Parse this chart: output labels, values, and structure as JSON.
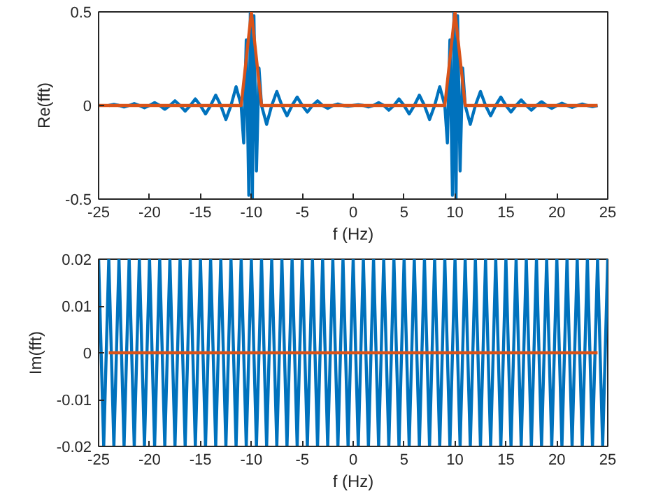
{
  "chart_data": [
    {
      "type": "line",
      "xlabel": "f (Hz)",
      "ylabel": "Re(fft)",
      "xlim": [
        -25,
        25
      ],
      "ylim": [
        -0.5,
        0.5
      ],
      "xticks": [
        -25,
        -20,
        -15,
        -10,
        -5,
        0,
        5,
        10,
        15,
        20,
        25
      ],
      "yticks": [
        -0.5,
        0,
        0.5
      ],
      "grid": false,
      "series": [
        {
          "color": "#0072bd",
          "x": [
            -24,
            -23.5,
            -23,
            -22.5,
            -22,
            -21.5,
            -21,
            -20.5,
            -20,
            -19.5,
            -19,
            -18.5,
            -18,
            -17.5,
            -17,
            -16.5,
            -16,
            -15.5,
            -15,
            -14.5,
            -14,
            -13.5,
            -13,
            -12.5,
            -12,
            -11.5,
            -11,
            -10.75,
            -10.5,
            -10.25,
            -10.1,
            -9.9,
            -9.75,
            -9.5,
            -9.25,
            -9,
            -8.5,
            -8,
            -7.5,
            -7,
            -6.5,
            -6,
            -5.5,
            -5,
            -4.5,
            -4,
            -3.5,
            -3,
            -2.5,
            -2,
            -1.5,
            -1,
            -0.5,
            0,
            0.5,
            1,
            1.5,
            2,
            2.5,
            3,
            3.5,
            4,
            4.5,
            5,
            5.5,
            6,
            6.5,
            7,
            7.5,
            8,
            8.5,
            9,
            9.25,
            9.5,
            9.75,
            9.9,
            10.1,
            10.25,
            10.5,
            10.75,
            11,
            11.5,
            12,
            12.5,
            13,
            13.5,
            14,
            14.5,
            15,
            15.5,
            16,
            16.5,
            17,
            17.5,
            18,
            18.5,
            19,
            19.5,
            20,
            20.5,
            21,
            21.5,
            22,
            22.5,
            23,
            23.5,
            24
          ],
          "values": [
            0,
            0.006,
            0,
            -0.008,
            0,
            0.01,
            0,
            -0.012,
            0,
            0.015,
            0,
            -0.02,
            0,
            0.025,
            0,
            -0.03,
            0,
            0.035,
            0,
            -0.045,
            0,
            0.055,
            0,
            -0.075,
            0,
            0.1,
            0,
            -0.2,
            0.35,
            -0.48,
            0.5,
            -0.5,
            0.48,
            -0.35,
            0.2,
            0,
            -0.1,
            0,
            0.075,
            0,
            -0.055,
            0,
            0.045,
            0,
            -0.035,
            0,
            0.025,
            0,
            -0.015,
            0,
            0.008,
            0,
            -0.004,
            0,
            0.004,
            0,
            -0.008,
            0,
            0.015,
            0,
            -0.025,
            0,
            0.035,
            0,
            -0.045,
            0,
            0.055,
            0,
            -0.075,
            0,
            0.1,
            0,
            -0.2,
            0.35,
            -0.48,
            0.5,
            -0.5,
            0.48,
            -0.35,
            0.2,
            0,
            -0.1,
            0,
            0.075,
            0,
            -0.055,
            0,
            0.045,
            0,
            -0.035,
            0,
            0.03,
            0,
            -0.025,
            0,
            0.02,
            0,
            -0.015,
            0,
            0.012,
            0,
            -0.01,
            0,
            0.008,
            0,
            -0.006,
            0
          ]
        },
        {
          "color": "#d95319",
          "x": [
            -25,
            -11,
            -10,
            -9,
            9,
            10,
            11,
            24
          ],
          "values": [
            0,
            0,
            0.5,
            0,
            0,
            0.5,
            0,
            0
          ]
        }
      ]
    },
    {
      "type": "line",
      "xlabel": "f (Hz)",
      "ylabel": "Im(fft)",
      "xlim": [
        -25,
        25
      ],
      "ylim": [
        -0.02,
        0.02
      ],
      "xticks": [
        -25,
        -20,
        -15,
        -10,
        -5,
        0,
        5,
        10,
        15,
        20,
        25
      ],
      "yticks": [
        -0.02,
        -0.01,
        0,
        0.01,
        0.02
      ],
      "grid": false,
      "series": [
        {
          "color": "#0072bd",
          "x": [
            -25,
            -24.5,
            -24,
            -23.5,
            -23,
            -22.5,
            -22,
            -21.5,
            -21,
            -20.5,
            -20,
            -19.5,
            -19,
            -18.5,
            -18,
            -17.5,
            -17,
            -16.5,
            -16,
            -15.5,
            -15,
            -14.5,
            -14,
            -13.5,
            -13,
            -12.5,
            -12,
            -11.5,
            -11,
            -10.5,
            -10,
            -9.5,
            -9,
            -8.5,
            -8,
            -7.5,
            -7,
            -6.5,
            -6,
            -5.5,
            -5,
            -4.5,
            -4,
            -3.5,
            -3,
            -2.5,
            -2,
            -1.5,
            -1,
            -0.5,
            0,
            0.5,
            1,
            1.5,
            2,
            2.5,
            3,
            3.5,
            4,
            4.5,
            5,
            5.5,
            6,
            6.5,
            7,
            7.5,
            8,
            8.5,
            9,
            9.5,
            10,
            10.5,
            11,
            11.5,
            12,
            12.5,
            13,
            13.5,
            14,
            14.5,
            15,
            15.5,
            16,
            16.5,
            17,
            17.5,
            18,
            18.5,
            19,
            19.5,
            20,
            20.5,
            21,
            21.5,
            22,
            22.5,
            23,
            23.5,
            24,
            24.5,
            25
          ],
          "values": [
            0.02,
            -0.02,
            0.02,
            -0.02,
            0.02,
            -0.02,
            0.02,
            -0.02,
            0.02,
            -0.02,
            0.02,
            -0.02,
            0.02,
            -0.02,
            0.02,
            -0.02,
            0.02,
            -0.02,
            0.02,
            -0.02,
            0.02,
            -0.02,
            0.02,
            -0.02,
            0.02,
            -0.02,
            0.02,
            -0.02,
            0.02,
            -0.02,
            0.02,
            -0.02,
            0.02,
            -0.02,
            0.02,
            -0.02,
            0.02,
            -0.02,
            0.02,
            -0.02,
            0.02,
            -0.02,
            0.02,
            -0.02,
            0.02,
            -0.02,
            0.02,
            -0.02,
            0.02,
            -0.02,
            0.02,
            -0.02,
            0.02,
            -0.02,
            0.02,
            -0.02,
            0.02,
            -0.02,
            0.02,
            -0.02,
            0.02,
            -0.02,
            0.02,
            -0.02,
            0.02,
            -0.02,
            0.02,
            -0.02,
            0.02,
            -0.02,
            0.02,
            -0.02,
            0.02,
            -0.02,
            0.02,
            -0.02,
            0.02,
            -0.02,
            0.02,
            -0.02,
            0.02,
            -0.02,
            0.02,
            -0.02,
            0.02,
            -0.02,
            0.02,
            -0.02,
            0.02,
            -0.02,
            0.02,
            -0.02,
            0.02,
            -0.02,
            0.02,
            -0.02,
            0.02,
            -0.02,
            0.02,
            -0.02,
            0.02
          ]
        },
        {
          "color": "#d95319",
          "x": [
            -24,
            24
          ],
          "values": [
            0,
            0
          ]
        }
      ]
    }
  ]
}
